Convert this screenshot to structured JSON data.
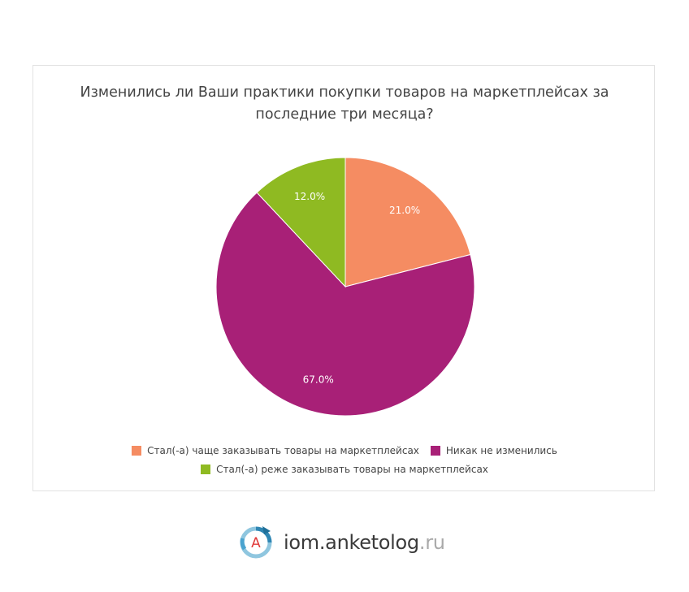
{
  "chart_data": {
    "type": "pie",
    "title_lines": [
      "Изменились ли Ваши практики покупки товаров на маркетплейсах за",
      "последние три месяца?"
    ],
    "slices": [
      {
        "label": "Стал(-а) чаще заказывать товары на маркетплейсах",
        "value": 21.0,
        "value_label": "21.0%",
        "color": "#f58c62"
      },
      {
        "label": "Никак не изменились",
        "value": 67.0,
        "value_label": "67.0%",
        "color": "#a82077"
      },
      {
        "label": "Стал(-а) реже заказывать товары на маркетплейсах",
        "value": 12.0,
        "value_label": "12.0%",
        "color": "#8fba22"
      }
    ],
    "start_angle": "top",
    "direction": "clockwise",
    "legend_position": "bottom"
  },
  "brand": {
    "logo_letter": "A",
    "name": "iom.anketolog",
    "tld": ".ru"
  }
}
